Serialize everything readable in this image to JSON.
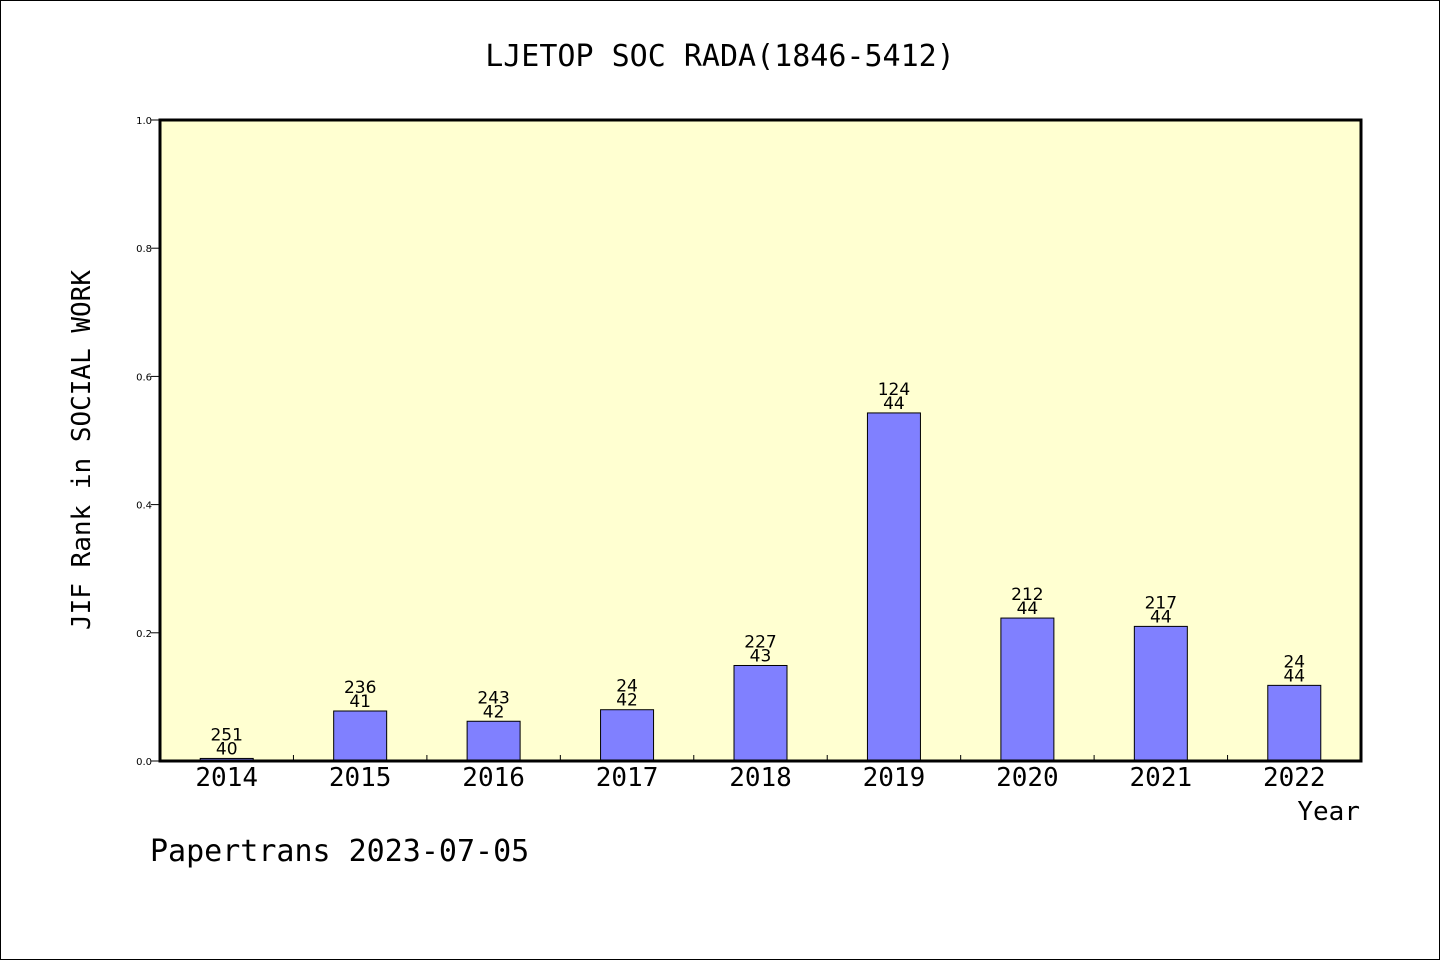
{
  "footer": {
    "source": "Papertrans",
    "date": "2023-07-05"
  },
  "colors": {
    "plot_background": "#ffffd1",
    "bar_fill": "#8080ff",
    "bar_stroke": "#000000"
  },
  "chart_data": {
    "type": "bar",
    "title": "LJETOP SOC RADA(1846-5412)",
    "xlabel": "Year",
    "ylabel": "JIF Rank in SOCIAL WORK",
    "ylim": [
      0,
      1.0
    ],
    "yticks": [
      "0.0",
      "0.2",
      "0.4",
      "0.6",
      "0.8",
      "1.0"
    ],
    "categories": [
      "2014",
      "2015",
      "2016",
      "2017",
      "2018",
      "2019",
      "2020",
      "2021",
      "2022"
    ],
    "values": [
      0.004,
      0.078,
      0.062,
      0.08,
      0.149,
      0.543,
      0.223,
      0.21,
      0.118
    ],
    "bar_labels": [
      {
        "top": "251",
        "bottom": "40"
      },
      {
        "top": "236",
        "bottom": "41"
      },
      {
        "top": "243",
        "bottom": "42"
      },
      {
        "top": "24",
        "bottom": "42"
      },
      {
        "top": "227",
        "bottom": "43"
      },
      {
        "top": "124",
        "bottom": "44"
      },
      {
        "top": "212",
        "bottom": "44"
      },
      {
        "top": "217",
        "bottom": "44"
      },
      {
        "top": "24",
        "bottom": "44"
      }
    ],
    "grid": false,
    "legend": "none"
  }
}
